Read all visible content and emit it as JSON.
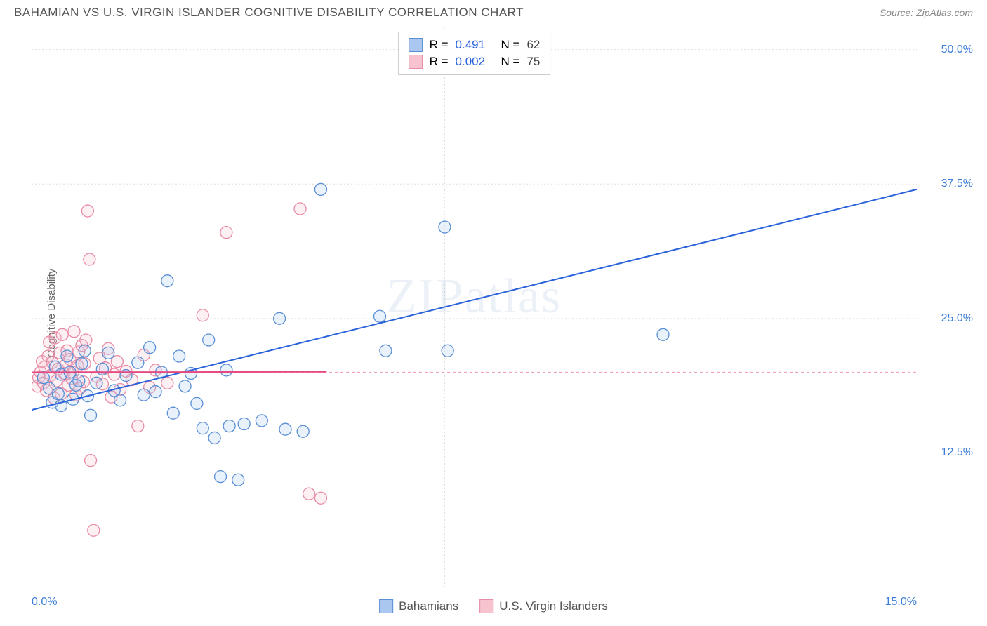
{
  "title": "BAHAMIAN VS U.S. VIRGIN ISLANDER COGNITIVE DISABILITY CORRELATION CHART",
  "source_prefix": "Source: ",
  "source_link": "ZipAtlas.com",
  "y_axis_label": "Cognitive Disability",
  "watermark": "ZIPatlas",
  "chart": {
    "type": "scatter",
    "xlim": [
      0,
      15
    ],
    "ylim": [
      0,
      52
    ],
    "x_ticks": [
      {
        "v": 0,
        "label": "0.0%",
        "color": "#3b7dd8"
      },
      {
        "v": 15,
        "label": "15.0%",
        "color": "#3b7dd8"
      }
    ],
    "y_ticks": [
      {
        "v": 12.5,
        "label": "12.5%",
        "color": "#3b7dd8"
      },
      {
        "v": 25.0,
        "label": "25.0%",
        "color": "#3b7dd8"
      },
      {
        "v": 37.5,
        "label": "37.5%",
        "color": "#3b7dd8"
      },
      {
        "v": 50.0,
        "label": "50.0%",
        "color": "#3b7dd8"
      }
    ],
    "grid_color": "#dddddd",
    "axis_color": "#888888",
    "background_color": "#ffffff",
    "marker_radius": 8.5,
    "marker_stroke_width": 1.3,
    "marker_fill_opacity": 0.25,
    "trend_line_width": 2,
    "trend_dash_width": 1.2,
    "series": [
      {
        "name": "Bahamians",
        "color_fill": "#a9c7ef",
        "color_stroke": "#5a8fd6",
        "color_line": "#2962d9",
        "R": "0.491",
        "N": "62",
        "trend": {
          "x1": 0,
          "y1": 16.5,
          "x2": 15,
          "y2": 37.0
        },
        "points": [
          [
            0.2,
            19.5
          ],
          [
            0.3,
            18.5
          ],
          [
            0.35,
            17.2
          ],
          [
            0.4,
            20.5
          ],
          [
            0.45,
            18.0
          ],
          [
            0.5,
            19.8
          ],
          [
            0.5,
            16.9
          ],
          [
            0.6,
            21.5
          ],
          [
            0.65,
            20.0
          ],
          [
            0.7,
            17.5
          ],
          [
            0.75,
            18.8
          ],
          [
            0.8,
            19.2
          ],
          [
            0.85,
            20.8
          ],
          [
            0.9,
            22.0
          ],
          [
            0.95,
            17.8
          ],
          [
            1.0,
            16.0
          ],
          [
            1.1,
            19.0
          ],
          [
            1.2,
            20.3
          ],
          [
            1.3,
            21.8
          ],
          [
            1.4,
            18.3
          ],
          [
            1.5,
            17.4
          ],
          [
            1.6,
            19.7
          ],
          [
            1.8,
            20.9
          ],
          [
            1.9,
            17.9
          ],
          [
            2.0,
            22.3
          ],
          [
            2.1,
            18.2
          ],
          [
            2.2,
            20.0
          ],
          [
            2.3,
            28.5
          ],
          [
            2.4,
            16.2
          ],
          [
            2.5,
            21.5
          ],
          [
            2.6,
            18.7
          ],
          [
            2.7,
            19.9
          ],
          [
            2.8,
            17.1
          ],
          [
            2.9,
            14.8
          ],
          [
            3.0,
            23.0
          ],
          [
            3.1,
            13.9
          ],
          [
            3.2,
            10.3
          ],
          [
            3.3,
            20.2
          ],
          [
            3.35,
            15.0
          ],
          [
            3.5,
            10.0
          ],
          [
            3.6,
            15.2
          ],
          [
            3.9,
            15.5
          ],
          [
            4.2,
            25.0
          ],
          [
            4.3,
            14.7
          ],
          [
            4.6,
            14.5
          ],
          [
            4.9,
            37.0
          ],
          [
            5.9,
            25.2
          ],
          [
            6.0,
            22.0
          ],
          [
            7.0,
            33.5
          ],
          [
            7.05,
            22.0
          ],
          [
            7.3,
            48.7
          ],
          [
            10.7,
            23.5
          ]
        ]
      },
      {
        "name": "U.S. Virgin Islanders",
        "color_fill": "#f6c3cf",
        "color_stroke": "#e88ba4",
        "color_line": "#e64980",
        "R": "0.002",
        "N": "75",
        "trend": {
          "x1": 0,
          "y1": 20.0,
          "x2": 5.0,
          "y2": 20.05
        },
        "points": [
          [
            0.1,
            18.7
          ],
          [
            0.12,
            19.5
          ],
          [
            0.15,
            20.0
          ],
          [
            0.18,
            21.0
          ],
          [
            0.2,
            19.0
          ],
          [
            0.22,
            20.5
          ],
          [
            0.25,
            18.3
          ],
          [
            0.28,
            21.5
          ],
          [
            0.3,
            22.8
          ],
          [
            0.32,
            19.7
          ],
          [
            0.35,
            20.9
          ],
          [
            0.38,
            17.6
          ],
          [
            0.4,
            23.2
          ],
          [
            0.42,
            19.2
          ],
          [
            0.45,
            20.3
          ],
          [
            0.48,
            21.8
          ],
          [
            0.5,
            18.0
          ],
          [
            0.52,
            23.5
          ],
          [
            0.55,
            19.9
          ],
          [
            0.58,
            20.7
          ],
          [
            0.6,
            22.0
          ],
          [
            0.62,
            18.8
          ],
          [
            0.65,
            21.2
          ],
          [
            0.68,
            19.4
          ],
          [
            0.7,
            20.0
          ],
          [
            0.72,
            23.8
          ],
          [
            0.75,
            17.9
          ],
          [
            0.78,
            20.6
          ],
          [
            0.8,
            21.9
          ],
          [
            0.82,
            18.5
          ],
          [
            0.85,
            22.5
          ],
          [
            0.88,
            19.1
          ],
          [
            0.9,
            20.8
          ],
          [
            0.92,
            23.0
          ],
          [
            0.95,
            35.0
          ],
          [
            0.98,
            30.5
          ],
          [
            1.0,
            11.8
          ],
          [
            1.05,
            5.3
          ],
          [
            1.1,
            19.6
          ],
          [
            1.15,
            21.3
          ],
          [
            1.2,
            18.9
          ],
          [
            1.25,
            20.4
          ],
          [
            1.3,
            22.2
          ],
          [
            1.35,
            17.7
          ],
          [
            1.4,
            19.8
          ],
          [
            1.45,
            21.0
          ],
          [
            1.5,
            18.4
          ],
          [
            1.6,
            20.1
          ],
          [
            1.7,
            19.3
          ],
          [
            1.8,
            15.0
          ],
          [
            1.9,
            21.6
          ],
          [
            2.0,
            18.6
          ],
          [
            2.1,
            20.2
          ],
          [
            2.3,
            19.0
          ],
          [
            2.9,
            25.3
          ],
          [
            3.3,
            33.0
          ],
          [
            4.55,
            35.2
          ],
          [
            4.7,
            8.7
          ],
          [
            4.9,
            8.3
          ]
        ]
      }
    ]
  },
  "legend_top": {
    "r_label": "R =",
    "n_label": "N =",
    "r_value_color": "#2962d9",
    "text_color": "#444444"
  },
  "legend_bottom_text_color": "#555555"
}
